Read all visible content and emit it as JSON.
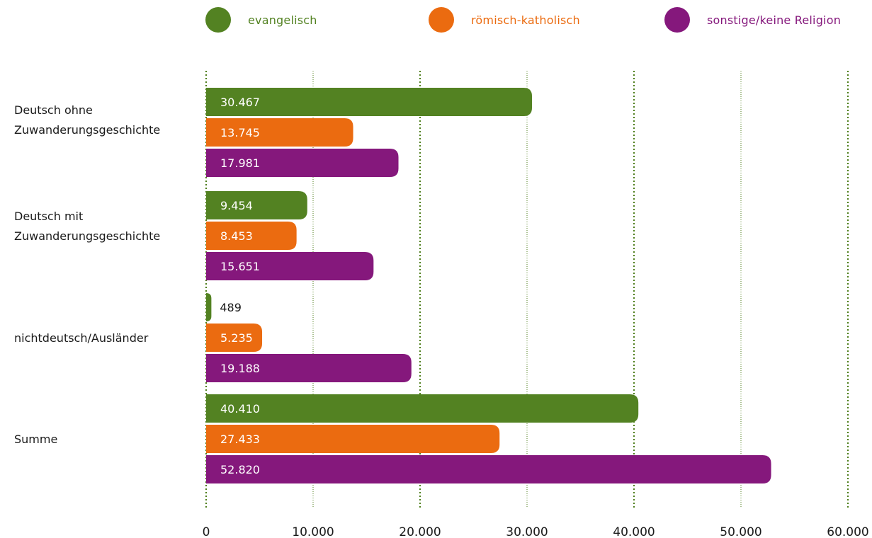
{
  "colors": {
    "evangelisch": "#538222",
    "katholisch": "#eb6b10",
    "sonstige": "#85187c",
    "grid": "#538222"
  },
  "legend": [
    {
      "label": "evangelisch",
      "color": "#538222"
    },
    {
      "label": "römisch-katholisch",
      "color": "#eb6b10"
    },
    {
      "label": "sonstige/keine Religion",
      "color": "#85187c"
    }
  ],
  "chart_data": {
    "type": "bar",
    "orientation": "horizontal",
    "title": "",
    "xlabel": "",
    "ylabel": "",
    "xlim": [
      0,
      60000
    ],
    "ticks": [
      0,
      10000,
      20000,
      30000,
      40000,
      50000,
      60000
    ],
    "tick_labels": [
      "0",
      "10.000",
      "20.000",
      "30.000",
      "40.000",
      "50.000",
      "60.000"
    ],
    "grid": true,
    "legend_position": "top",
    "categories": [
      "Deutsch ohne\nZuwanderungsgeschichte",
      "Deutsch mit\nZuwanderungsgeschichte",
      "nichtdeutsch/Ausländer",
      "Summe"
    ],
    "series": [
      {
        "name": "evangelisch",
        "values": [
          30467,
          9454,
          489,
          40410
        ],
        "labels": [
          "30.467",
          "9.454",
          "489",
          "40.410"
        ]
      },
      {
        "name": "römisch-katholisch",
        "values": [
          13745,
          8453,
          5235,
          27433
        ],
        "labels": [
          "13.745",
          "8.453",
          "5.235",
          "27.433"
        ]
      },
      {
        "name": "sonstige/keine Religion",
        "values": [
          17981,
          15651,
          19188,
          52820
        ],
        "labels": [
          "17.981",
          "15.651",
          "19.188",
          "52.820"
        ]
      }
    ]
  }
}
